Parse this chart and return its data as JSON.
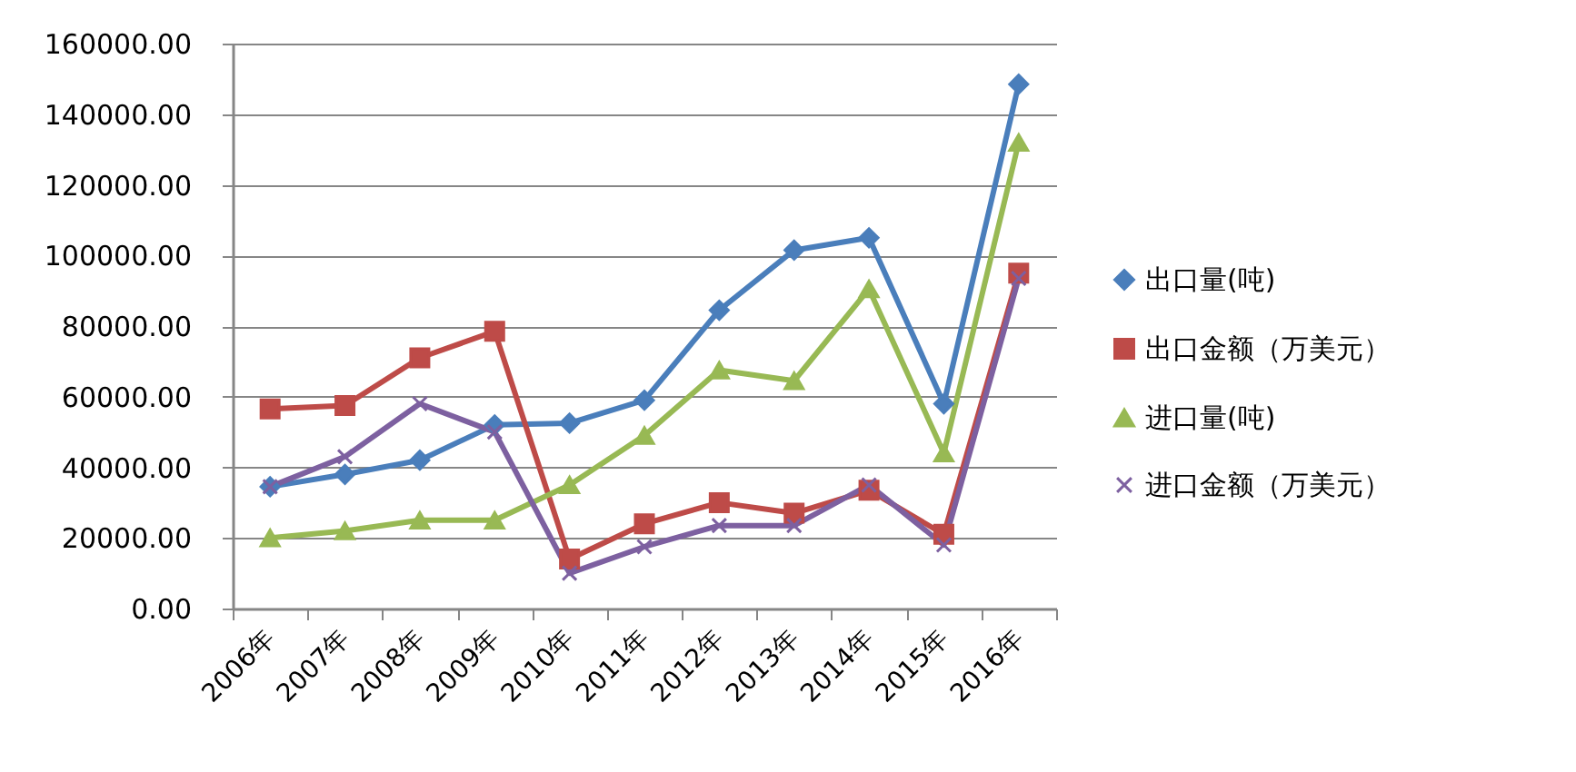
{
  "chart_data": {
    "type": "line",
    "categories": [
      "2006年",
      "2007年",
      "2008年",
      "2009年",
      "2010年",
      "2011年",
      "2012年",
      "2013年",
      "2014年",
      "2015年",
      "2016年"
    ],
    "series": [
      {
        "name": "出口量(吨)",
        "color": "#4a7ebb",
        "marker": "diamond",
        "values": [
          34500,
          38000,
          42000,
          52000,
          52500,
          59000,
          84500,
          101500,
          105000,
          58000,
          148500
        ]
      },
      {
        "name": "出口金额（万美元）",
        "color": "#be4b48",
        "marker": "square",
        "values": [
          56500,
          57500,
          71000,
          78500,
          14000,
          24000,
          30000,
          27000,
          33500,
          21000,
          95000
        ]
      },
      {
        "name": "进口量(吨)",
        "color": "#98b954",
        "marker": "triangle",
        "values": [
          20000,
          22000,
          25000,
          25000,
          35000,
          49000,
          67500,
          64500,
          90500,
          44000,
          132000
        ]
      },
      {
        "name": "进口金额（万美元）",
        "color": "#7d60a0",
        "marker": "cross",
        "values": [
          34500,
          43000,
          58000,
          50000,
          10000,
          17500,
          23500,
          23500,
          35000,
          18000,
          93500
        ]
      }
    ],
    "ylim": [
      0,
      160000
    ],
    "yticks": [
      {
        "value": 0,
        "label": "0.00"
      },
      {
        "value": 20000,
        "label": "20000.00"
      },
      {
        "value": 40000,
        "label": "40000.00"
      },
      {
        "value": 60000,
        "label": "60000.00"
      },
      {
        "value": 80000,
        "label": "80000.00"
      },
      {
        "value": 100000,
        "label": "100000.00"
      },
      {
        "value": 120000,
        "label": "120000.00"
      },
      {
        "value": 140000,
        "label": "140000.00"
      },
      {
        "value": 160000,
        "label": "160000.00"
      }
    ],
    "grid": "y",
    "legend": "right"
  }
}
